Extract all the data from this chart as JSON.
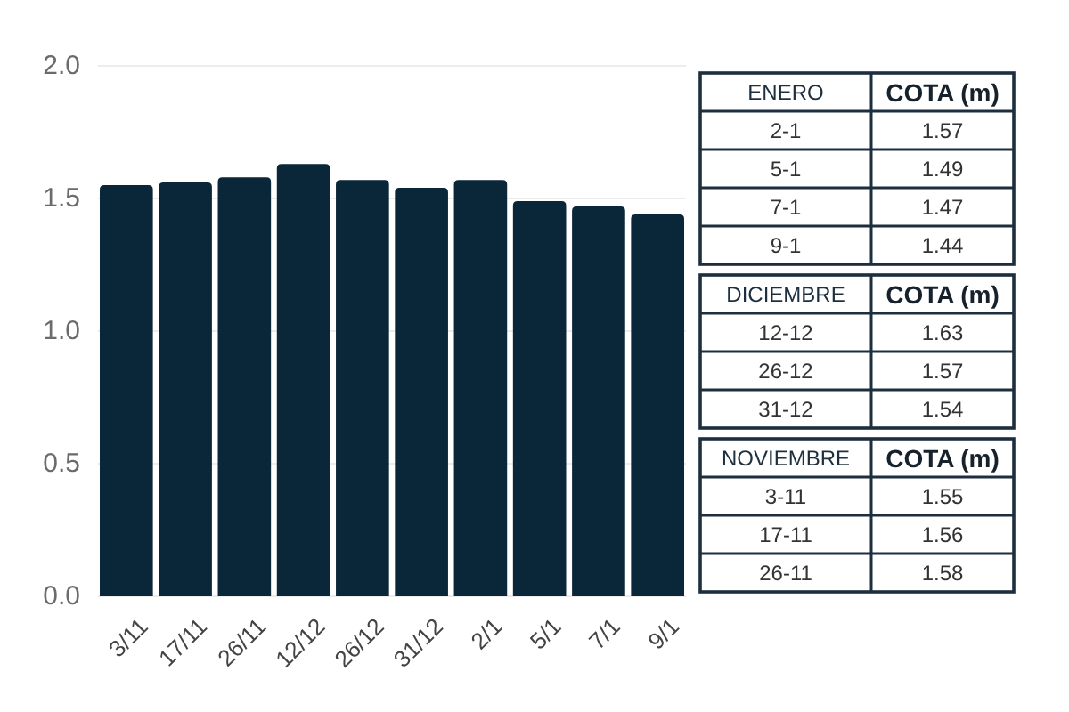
{
  "chart_data": [
    {
      "type": "bar",
      "categories": [
        "3/11",
        "17/11",
        "26/11",
        "12/12",
        "26/12",
        "31/12",
        "2/1",
        "5/1",
        "7/1",
        "9/1"
      ],
      "values": [
        1.55,
        1.56,
        1.58,
        1.63,
        1.57,
        1.54,
        1.57,
        1.49,
        1.47,
        1.44
      ],
      "color": "#0a2639",
      "ylim": [
        0,
        2
      ],
      "yticks": [
        {
          "value": 0,
          "label": "0.0"
        },
        0.5,
        {
          "value": 1,
          "label": "1.0"
        },
        1.5,
        {
          "value": 2,
          "label": "2.0"
        }
      ],
      "grid": "y"
    },
    {
      "type": "other",
      "xlabel": "ENERO",
      "ylabel": "COTA (m)",
      "categories": [
        "2-1",
        "5-1",
        "7-1",
        "9-1"
      ],
      "values": [
        1.57,
        1.49,
        1.47,
        1.44
      ],
      "data_labels": true
    },
    {
      "type": "other",
      "xlabel": "DICIEMBRE",
      "ylabel": "COTA (m)",
      "categories": [
        "12-12",
        "26-12",
        "31-12"
      ],
      "values": [
        1.63,
        1.57,
        1.54
      ],
      "data_labels": true
    },
    {
      "type": "other",
      "xlabel": "NOVIEMBRE",
      "ylabel": "COTA (m)",
      "categories": [
        "3-11",
        "17-11",
        "26-11"
      ],
      "values": [
        1.55,
        1.56,
        1.58
      ],
      "data_labels": true
    }
  ]
}
